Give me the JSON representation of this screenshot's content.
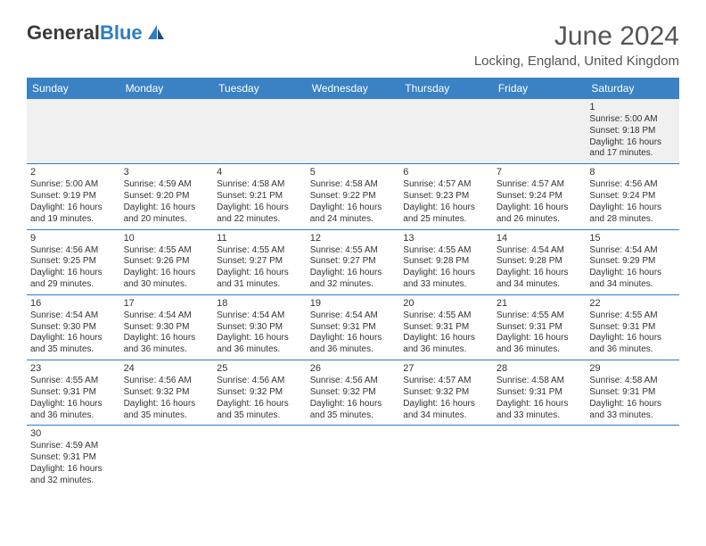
{
  "logo": {
    "text1": "General",
    "text2": "Blue"
  },
  "title": "June 2024",
  "location": "Locking, England, United Kingdom",
  "colors": {
    "header_bg": "#3a82c4",
    "header_text": "#ffffff",
    "border": "#2e7cc4",
    "text": "#333333",
    "background": "#ffffff",
    "firstrow_bg": "#f0f0f0"
  },
  "day_headers": [
    "Sunday",
    "Monday",
    "Tuesday",
    "Wednesday",
    "Thursday",
    "Friday",
    "Saturday"
  ],
  "weeks": [
    [
      null,
      null,
      null,
      null,
      null,
      null,
      {
        "n": "1",
        "sr": "Sunrise: 5:00 AM",
        "ss": "Sunset: 9:18 PM",
        "d1": "Daylight: 16 hours",
        "d2": "and 17 minutes."
      }
    ],
    [
      {
        "n": "2",
        "sr": "Sunrise: 5:00 AM",
        "ss": "Sunset: 9:19 PM",
        "d1": "Daylight: 16 hours",
        "d2": "and 19 minutes."
      },
      {
        "n": "3",
        "sr": "Sunrise: 4:59 AM",
        "ss": "Sunset: 9:20 PM",
        "d1": "Daylight: 16 hours",
        "d2": "and 20 minutes."
      },
      {
        "n": "4",
        "sr": "Sunrise: 4:58 AM",
        "ss": "Sunset: 9:21 PM",
        "d1": "Daylight: 16 hours",
        "d2": "and 22 minutes."
      },
      {
        "n": "5",
        "sr": "Sunrise: 4:58 AM",
        "ss": "Sunset: 9:22 PM",
        "d1": "Daylight: 16 hours",
        "d2": "and 24 minutes."
      },
      {
        "n": "6",
        "sr": "Sunrise: 4:57 AM",
        "ss": "Sunset: 9:23 PM",
        "d1": "Daylight: 16 hours",
        "d2": "and 25 minutes."
      },
      {
        "n": "7",
        "sr": "Sunrise: 4:57 AM",
        "ss": "Sunset: 9:24 PM",
        "d1": "Daylight: 16 hours",
        "d2": "and 26 minutes."
      },
      {
        "n": "8",
        "sr": "Sunrise: 4:56 AM",
        "ss": "Sunset: 9:24 PM",
        "d1": "Daylight: 16 hours",
        "d2": "and 28 minutes."
      }
    ],
    [
      {
        "n": "9",
        "sr": "Sunrise: 4:56 AM",
        "ss": "Sunset: 9:25 PM",
        "d1": "Daylight: 16 hours",
        "d2": "and 29 minutes."
      },
      {
        "n": "10",
        "sr": "Sunrise: 4:55 AM",
        "ss": "Sunset: 9:26 PM",
        "d1": "Daylight: 16 hours",
        "d2": "and 30 minutes."
      },
      {
        "n": "11",
        "sr": "Sunrise: 4:55 AM",
        "ss": "Sunset: 9:27 PM",
        "d1": "Daylight: 16 hours",
        "d2": "and 31 minutes."
      },
      {
        "n": "12",
        "sr": "Sunrise: 4:55 AM",
        "ss": "Sunset: 9:27 PM",
        "d1": "Daylight: 16 hours",
        "d2": "and 32 minutes."
      },
      {
        "n": "13",
        "sr": "Sunrise: 4:55 AM",
        "ss": "Sunset: 9:28 PM",
        "d1": "Daylight: 16 hours",
        "d2": "and 33 minutes."
      },
      {
        "n": "14",
        "sr": "Sunrise: 4:54 AM",
        "ss": "Sunset: 9:28 PM",
        "d1": "Daylight: 16 hours",
        "d2": "and 34 minutes."
      },
      {
        "n": "15",
        "sr": "Sunrise: 4:54 AM",
        "ss": "Sunset: 9:29 PM",
        "d1": "Daylight: 16 hours",
        "d2": "and 34 minutes."
      }
    ],
    [
      {
        "n": "16",
        "sr": "Sunrise: 4:54 AM",
        "ss": "Sunset: 9:30 PM",
        "d1": "Daylight: 16 hours",
        "d2": "and 35 minutes."
      },
      {
        "n": "17",
        "sr": "Sunrise: 4:54 AM",
        "ss": "Sunset: 9:30 PM",
        "d1": "Daylight: 16 hours",
        "d2": "and 36 minutes."
      },
      {
        "n": "18",
        "sr": "Sunrise: 4:54 AM",
        "ss": "Sunset: 9:30 PM",
        "d1": "Daylight: 16 hours",
        "d2": "and 36 minutes."
      },
      {
        "n": "19",
        "sr": "Sunrise: 4:54 AM",
        "ss": "Sunset: 9:31 PM",
        "d1": "Daylight: 16 hours",
        "d2": "and 36 minutes."
      },
      {
        "n": "20",
        "sr": "Sunrise: 4:55 AM",
        "ss": "Sunset: 9:31 PM",
        "d1": "Daylight: 16 hours",
        "d2": "and 36 minutes."
      },
      {
        "n": "21",
        "sr": "Sunrise: 4:55 AM",
        "ss": "Sunset: 9:31 PM",
        "d1": "Daylight: 16 hours",
        "d2": "and 36 minutes."
      },
      {
        "n": "22",
        "sr": "Sunrise: 4:55 AM",
        "ss": "Sunset: 9:31 PM",
        "d1": "Daylight: 16 hours",
        "d2": "and 36 minutes."
      }
    ],
    [
      {
        "n": "23",
        "sr": "Sunrise: 4:55 AM",
        "ss": "Sunset: 9:31 PM",
        "d1": "Daylight: 16 hours",
        "d2": "and 36 minutes."
      },
      {
        "n": "24",
        "sr": "Sunrise: 4:56 AM",
        "ss": "Sunset: 9:32 PM",
        "d1": "Daylight: 16 hours",
        "d2": "and 35 minutes."
      },
      {
        "n": "25",
        "sr": "Sunrise: 4:56 AM",
        "ss": "Sunset: 9:32 PM",
        "d1": "Daylight: 16 hours",
        "d2": "and 35 minutes."
      },
      {
        "n": "26",
        "sr": "Sunrise: 4:56 AM",
        "ss": "Sunset: 9:32 PM",
        "d1": "Daylight: 16 hours",
        "d2": "and 35 minutes."
      },
      {
        "n": "27",
        "sr": "Sunrise: 4:57 AM",
        "ss": "Sunset: 9:32 PM",
        "d1": "Daylight: 16 hours",
        "d2": "and 34 minutes."
      },
      {
        "n": "28",
        "sr": "Sunrise: 4:58 AM",
        "ss": "Sunset: 9:31 PM",
        "d1": "Daylight: 16 hours",
        "d2": "and 33 minutes."
      },
      {
        "n": "29",
        "sr": "Sunrise: 4:58 AM",
        "ss": "Sunset: 9:31 PM",
        "d1": "Daylight: 16 hours",
        "d2": "and 33 minutes."
      }
    ],
    [
      {
        "n": "30",
        "sr": "Sunrise: 4:59 AM",
        "ss": "Sunset: 9:31 PM",
        "d1": "Daylight: 16 hours",
        "d2": "and 32 minutes."
      },
      null,
      null,
      null,
      null,
      null,
      null
    ]
  ]
}
